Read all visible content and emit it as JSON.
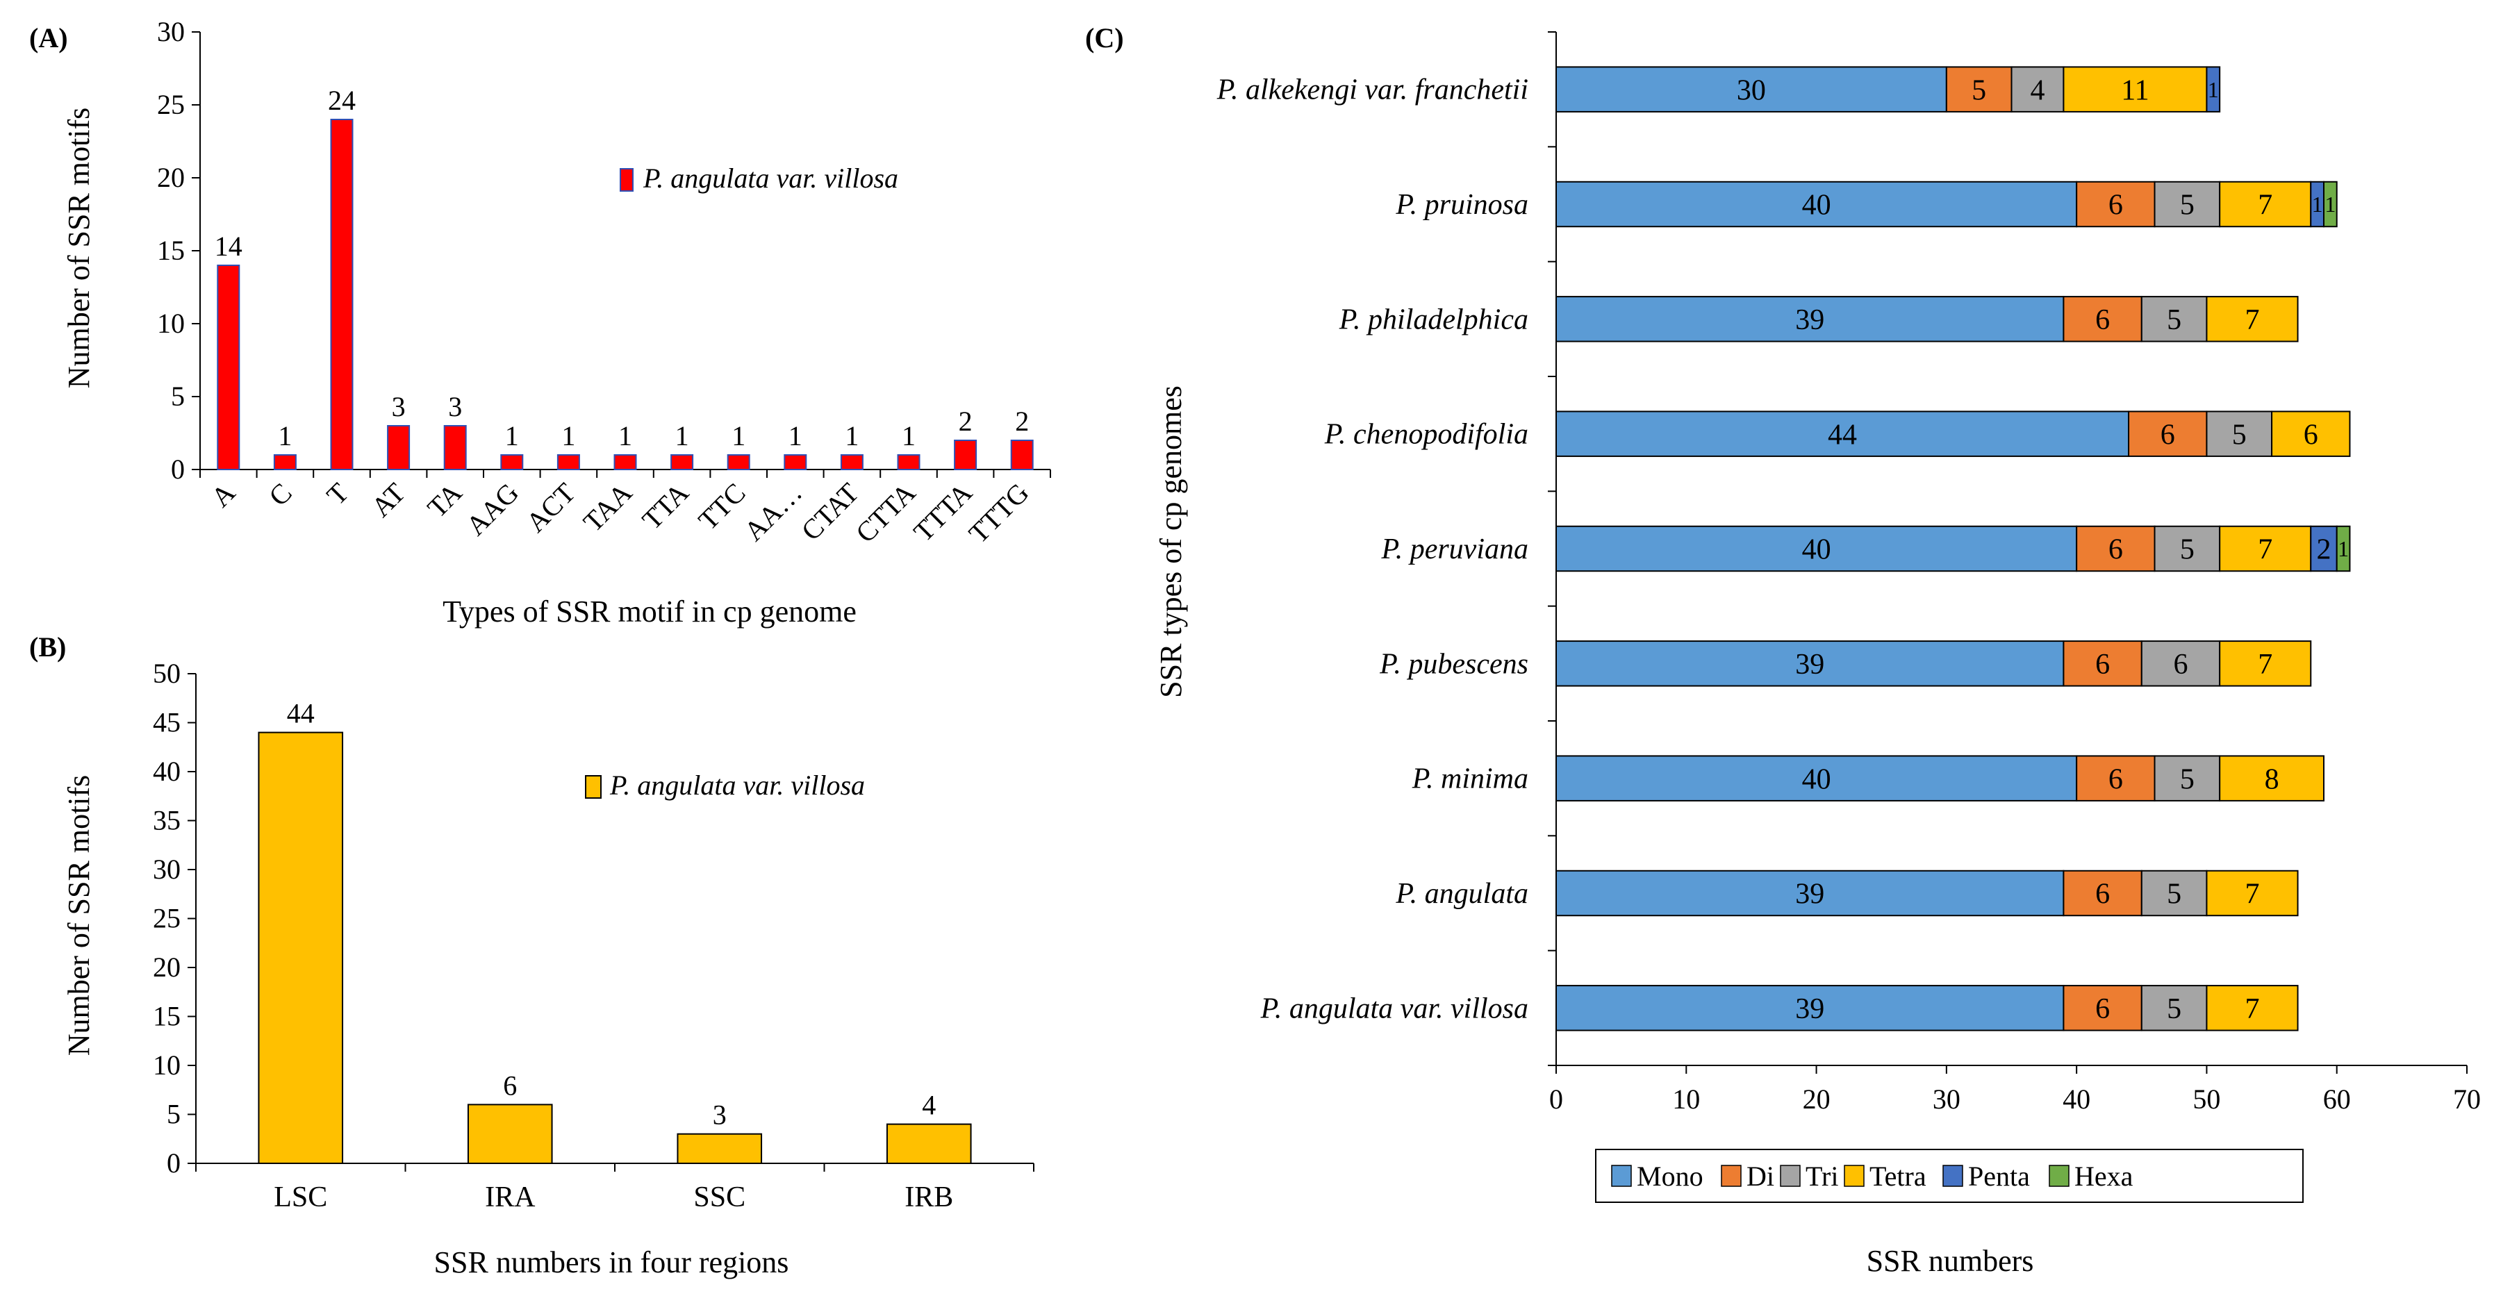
{
  "chart_data": [
    {
      "id": "A",
      "type": "bar",
      "panel_label": "(A)",
      "categories": [
        "A",
        "C",
        "T",
        "AT",
        "TA",
        "AAG",
        "ACT",
        "TAA",
        "TTA",
        "TTC",
        "AA…",
        "CTAT",
        "CTTA",
        "TTTA",
        "TTTG"
      ],
      "series": [
        {
          "name": "P. angulata var. villosa",
          "color": "#ff0000",
          "values": [
            14,
            1,
            24,
            3,
            3,
            1,
            1,
            1,
            1,
            1,
            1,
            1,
            1,
            2,
            2
          ]
        }
      ],
      "data_labels": [
        "14",
        "1",
        "24",
        "3",
        "3",
        "1",
        "1",
        "1",
        "1",
        "1",
        "1",
        "1",
        "1",
        "2",
        "2"
      ],
      "xlabel": "Types of SSR motif in cp genome",
      "ylabel": "Number of SSR motifs",
      "ylim": [
        0,
        30
      ],
      "yticks": [
        0,
        5,
        10,
        15,
        20,
        25,
        30
      ],
      "ytick_labels": [
        "0",
        "5",
        "10",
        "15",
        "20",
        "25",
        "30"
      ],
      "legend_label": "P. angulata var. villosa",
      "legend_position": "upper-right"
    },
    {
      "id": "B",
      "type": "bar",
      "panel_label": "(B)",
      "categories": [
        "LSC",
        "IRA",
        "SSC",
        "IRB"
      ],
      "series": [
        {
          "name": "P. angulata var. villosa",
          "color": "#ffc000",
          "values": [
            44,
            6,
            3,
            4
          ]
        }
      ],
      "data_labels": [
        "44",
        "6",
        "3",
        "4"
      ],
      "xlabel": "SSR numbers in four regions",
      "ylabel": "Number of SSR motifs",
      "ylim": [
        0,
        50
      ],
      "yticks": [
        0,
        5,
        10,
        15,
        20,
        25,
        30,
        35,
        40,
        45,
        50
      ],
      "ytick_labels": [
        "0",
        "5",
        "10",
        "15",
        "20",
        "25",
        "30",
        "35",
        "40",
        "45",
        "50"
      ],
      "legend_label": "P. angulata var. villosa",
      "legend_position": "upper-right"
    },
    {
      "id": "C",
      "type": "stacked-bar-horizontal",
      "panel_label": "(C)",
      "categories": [
        "P. alkekengi var. franchetii",
        "P. pruinosa",
        "P. philadelphica",
        "P. chenopodifolia",
        "P. peruviana",
        "P. pubescens",
        "P. minima",
        "P. angulata",
        "P. angulata var. villosa"
      ],
      "series": [
        {
          "name": "Mono",
          "color": "#5b9bd5",
          "values": [
            30,
            40,
            39,
            44,
            40,
            39,
            40,
            39,
            39
          ],
          "labels": [
            "30",
            "40",
            "39",
            "44",
            "40",
            "39",
            "40",
            "39",
            "39"
          ]
        },
        {
          "name": "Di",
          "color": "#ed7d31",
          "values": [
            5,
            6,
            6,
            6,
            6,
            6,
            6,
            6,
            6
          ],
          "labels": [
            "5",
            "6",
            "6",
            "6",
            "6",
            "6",
            "6",
            "6",
            "6"
          ]
        },
        {
          "name": "Tri",
          "color": "#a5a5a5",
          "values": [
            4,
            5,
            5,
            5,
            5,
            6,
            5,
            5,
            5
          ],
          "labels": [
            "4",
            "5",
            "5",
            "5",
            "5",
            "6",
            "5",
            "5",
            "5"
          ]
        },
        {
          "name": "Tetra",
          "color": "#ffc000",
          "values": [
            11,
            7,
            7,
            6,
            7,
            7,
            8,
            7,
            7
          ],
          "labels": [
            "11",
            "7",
            "7",
            "6",
            "7",
            "7",
            "8",
            "7",
            "7"
          ]
        },
        {
          "name": "Penta",
          "color": "#4472c4",
          "values": [
            1,
            1,
            0,
            0,
            2,
            0,
            0,
            0,
            0
          ],
          "labels": [
            "1",
            "1",
            "",
            "",
            "2",
            "",
            "",
            "",
            ""
          ]
        },
        {
          "name": "Hexa",
          "color": "#70ad47",
          "values": [
            0,
            1,
            0,
            0,
            1,
            0,
            0,
            0,
            0
          ],
          "labels": [
            "",
            "1",
            "",
            "",
            "1",
            "",
            "",
            "",
            ""
          ]
        }
      ],
      "xlabel": "SSR numbers",
      "ylabel": "SSR types of cp genomes",
      "xlim": [
        0,
        70
      ],
      "xticks": [
        0,
        10,
        20,
        30,
        40,
        50,
        60,
        70
      ],
      "xtick_labels": [
        "0",
        "10",
        "20",
        "30",
        "40",
        "50",
        "60",
        "70"
      ],
      "legend_position": "bottom"
    }
  ]
}
